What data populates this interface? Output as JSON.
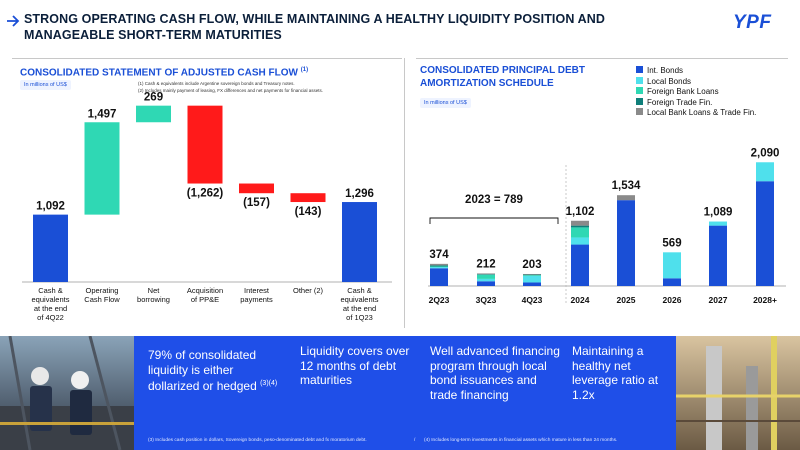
{
  "header": {
    "title": "STRONG OPERATING CASH FLOW, WHILE MAINTAINING A HEALTHY LIQUIDITY POSITION AND MANAGEABLE SHORT-TERM MATURITIES",
    "logo_text": "YPF",
    "arrow_color": "#1a4fd6"
  },
  "left_section": {
    "title": "CONSOLIDATED STATEMENT OF ADJUSTED CASH FLOW",
    "title_note": "(1)",
    "units": "In millions of US$",
    "footnote_1": "(1) Cash & equivalents include Argentine sovereign bonds and Treasury notes.",
    "footnote_2": "(2) Includes mainly payment of leasing, FX differences and net payments for financial assets."
  },
  "right_section": {
    "title": "CONSOLIDATED PRINCIPAL DEBT AMORTIZATION SCHEDULE",
    "units": "In millions of US$",
    "bracket_label": "2023 = 789"
  },
  "chart_data": [
    {
      "type": "bar",
      "subtype": "waterfall",
      "title": "CONSOLIDATED STATEMENT OF ADJUSTED CASH FLOW",
      "units": "In millions of US$",
      "categories": [
        "Cash & equivalents at the end of 4Q22",
        "Operating Cash Flow",
        "Net borrowing",
        "Acquisition of PP&E",
        "Interest payments",
        "Other (2)",
        "Cash & equivalents at the end of 1Q23"
      ],
      "values": [
        1092,
        1497,
        269,
        -1262,
        -157,
        -143,
        1296
      ],
      "value_labels": [
        "1,092",
        "1,497",
        "269",
        "(1,262)",
        "(157)",
        "(143)",
        "1,296"
      ],
      "kinds": [
        "total",
        "increase",
        "increase",
        "decrease",
        "decrease",
        "decrease",
        "total"
      ],
      "colors": {
        "total": "#1a4fd6",
        "increase": "#2fd8b4",
        "decrease": "#ff1a1a"
      }
    },
    {
      "type": "bar",
      "subtype": "stacked",
      "title": "CONSOLIDATED PRINCIPAL DEBT AMORTIZATION SCHEDULE",
      "units": "In millions of US$",
      "categories": [
        "2Q23",
        "3Q23",
        "4Q23",
        "2024",
        "2025",
        "2026",
        "2027",
        "2028+"
      ],
      "totals": [
        374,
        212,
        203,
        1102,
        1534,
        569,
        1089,
        2090
      ],
      "total_labels": [
        "374",
        "212",
        "203",
        "1,102",
        "1,534",
        "569",
        "1,089",
        "2,090"
      ],
      "series": [
        {
          "name": "Int. Bonds",
          "color": "#1a4fd6",
          "values": [
            300,
            80,
            60,
            700,
            1450,
            130,
            1020,
            1770
          ]
        },
        {
          "name": "Local Bonds",
          "color": "#4fe0ec",
          "values": [
            20,
            40,
            110,
            120,
            0,
            439,
            69,
            320
          ]
        },
        {
          "name": "Foreign Bank Loans",
          "color": "#2fd8b4",
          "values": [
            10,
            70,
            13,
            170,
            0,
            0,
            0,
            0
          ]
        },
        {
          "name": "Foreign Trade Fin.",
          "color": "#0f7f7a",
          "values": [
            20,
            10,
            10,
            30,
            0,
            0,
            0,
            0
          ]
        },
        {
          "name": "Local Bank Loans & Trade Fin.",
          "color": "#8a8a8a",
          "values": [
            24,
            12,
            10,
            82,
            84,
            0,
            0,
            0
          ]
        }
      ],
      "annotation": "2023 = 789"
    }
  ],
  "statements": [
    {
      "text": "79% of consolidated liquidity is either dollarized or hedged",
      "note": "(3)(4)"
    },
    {
      "text": "Liquidity covers over 12 months of debt maturities"
    },
    {
      "text": "Well advanced financing program through local bond issuances and trade financing"
    },
    {
      "text": "Maintaining a healthy net leverage ratio at 1.2x"
    }
  ],
  "band_footnotes": {
    "note_3": "(3) Includes cash position in dollars, Sovereign bonds, peso-denominated debt and fx moratorium debt.",
    "separator": "/",
    "note_4": "(4) Includes long-term investments in financial assets which mature in less than 24 months."
  }
}
